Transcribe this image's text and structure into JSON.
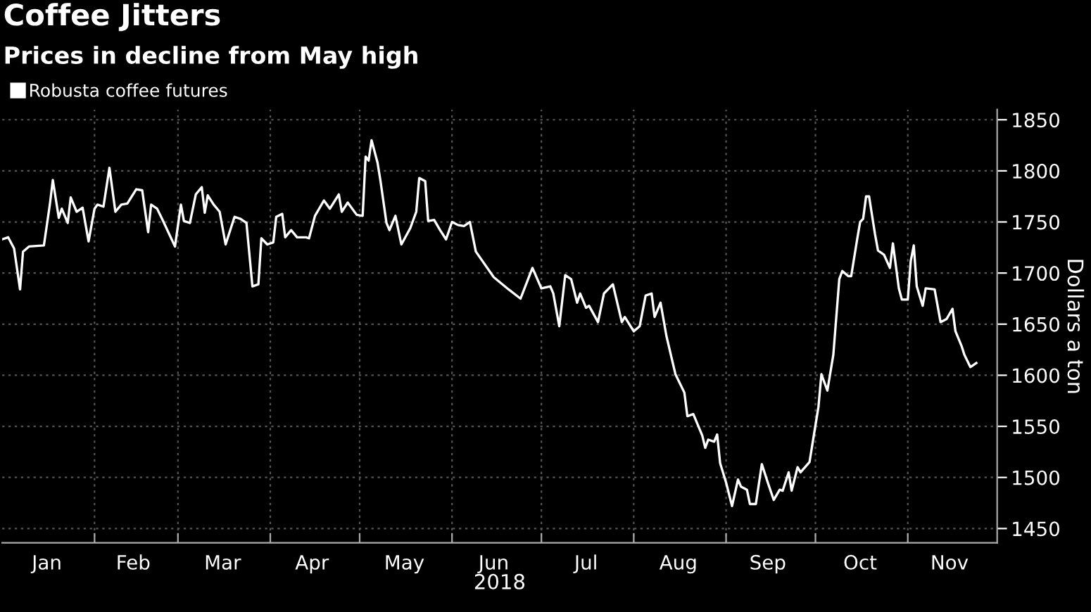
{
  "chart_data": {
    "type": "line",
    "title": "Coffee Jitters",
    "subtitle": "Prices in decline from May high",
    "xlabel": "2018",
    "ylabel": "Dollars a ton",
    "xlim": [
      "2018-01-01",
      "2018-12-01"
    ],
    "xticks": [
      {
        "value": "2018-01-16",
        "label": "Jan"
      },
      {
        "value": "2018-02-01",
        "label": null
      },
      {
        "value": "2018-02-14",
        "label": "Feb"
      },
      {
        "value": "2018-03-01",
        "label": null
      },
      {
        "value": "2018-03-16",
        "label": "Mar"
      },
      {
        "value": "2018-04-01",
        "label": null
      },
      {
        "value": "2018-04-15",
        "label": "Apr"
      },
      {
        "value": "2018-05-01",
        "label": null
      },
      {
        "value": "2018-05-16",
        "label": "May"
      },
      {
        "value": "2018-06-01",
        "label": null
      },
      {
        "value": "2018-06-15",
        "label": "Jun"
      },
      {
        "value": "2018-07-01",
        "label": null
      },
      {
        "value": "2018-07-16",
        "label": "Jul"
      },
      {
        "value": "2018-08-01",
        "label": null
      },
      {
        "value": "2018-08-16",
        "label": "Aug"
      },
      {
        "value": "2018-09-01",
        "label": null
      },
      {
        "value": "2018-09-15",
        "label": "Sep"
      },
      {
        "value": "2018-10-01",
        "label": null
      },
      {
        "value": "2018-10-16",
        "label": "Oct"
      },
      {
        "value": "2018-11-01",
        "label": null
      },
      {
        "value": "2018-11-15",
        "label": "Nov"
      }
    ],
    "ylim": [
      1436,
      1860
    ],
    "yticks": [
      1450,
      1500,
      1550,
      1600,
      1650,
      1700,
      1750,
      1800,
      1850
    ],
    "grid": true,
    "legend": "top left",
    "line_style": "solid",
    "series": [
      {
        "name": "Robusta coffee futures",
        "color": "#ffffff",
        "x": [
          "2018-01-01",
          "2018-01-03",
          "2018-01-05",
          "2018-01-07",
          "2018-01-08",
          "2018-01-10",
          "2018-01-15",
          "2018-01-17",
          "2018-01-18",
          "2018-01-20",
          "2018-01-21",
          "2018-01-23",
          "2018-01-24",
          "2018-01-26",
          "2018-01-28",
          "2018-01-30",
          "2018-02-01",
          "2018-02-02",
          "2018-02-04",
          "2018-02-06",
          "2018-02-08",
          "2018-02-10",
          "2018-02-12",
          "2018-02-15",
          "2018-02-17",
          "2018-02-19",
          "2018-02-20",
          "2018-02-22",
          "2018-02-24",
          "2018-02-28",
          "2018-03-02",
          "2018-03-03",
          "2018-03-05",
          "2018-03-07",
          "2018-03-09",
          "2018-03-10",
          "2018-03-11",
          "2018-03-13",
          "2018-03-15",
          "2018-03-17",
          "2018-03-20",
          "2018-03-22",
          "2018-03-24",
          "2018-03-26",
          "2018-03-28",
          "2018-03-29",
          "2018-03-31",
          "2018-04-02",
          "2018-04-03",
          "2018-04-05",
          "2018-04-06",
          "2018-04-08",
          "2018-04-10",
          "2018-04-13",
          "2018-04-14",
          "2018-04-16",
          "2018-04-19",
          "2018-04-21",
          "2018-04-24",
          "2018-04-25",
          "2018-04-27",
          "2018-04-30",
          "2018-05-02",
          "2018-05-03",
          "2018-05-04",
          "2018-05-05",
          "2018-05-07",
          "2018-05-08",
          "2018-05-10",
          "2018-05-11",
          "2018-05-13",
          "2018-05-15",
          "2018-05-18",
          "2018-05-20",
          "2018-05-21",
          "2018-05-23",
          "2018-05-24",
          "2018-05-26",
          "2018-05-28",
          "2018-05-30",
          "2018-06-01",
          "2018-06-03",
          "2018-06-05",
          "2018-06-07",
          "2018-06-09",
          "2018-06-15",
          "2018-06-20",
          "2018-06-24",
          "2018-06-28",
          "2018-07-01",
          "2018-07-04",
          "2018-07-05",
          "2018-07-07",
          "2018-07-09",
          "2018-07-11",
          "2018-07-13",
          "2018-07-14",
          "2018-07-16",
          "2018-07-17",
          "2018-07-20",
          "2018-07-22",
          "2018-07-25",
          "2018-07-28",
          "2018-07-29",
          "2018-08-01",
          "2018-08-03",
          "2018-08-05",
          "2018-08-07",
          "2018-08-08",
          "2018-08-10",
          "2018-08-12",
          "2018-08-15",
          "2018-08-18",
          "2018-08-19",
          "2018-08-21",
          "2018-08-24",
          "2018-08-25",
          "2018-08-26",
          "2018-08-28",
          "2018-08-29",
          "2018-08-30",
          "2018-09-01",
          "2018-09-03",
          "2018-09-05",
          "2018-09-06",
          "2018-09-08",
          "2018-09-09",
          "2018-09-11",
          "2018-09-13",
          "2018-09-15",
          "2018-09-17",
          "2018-09-19",
          "2018-09-20",
          "2018-09-22",
          "2018-09-23",
          "2018-09-25",
          "2018-09-26",
          "2018-09-29",
          "2018-10-01",
          "2018-10-02",
          "2018-10-03",
          "2018-10-05",
          "2018-10-07",
          "2018-10-09",
          "2018-10-10",
          "2018-10-12",
          "2018-10-13",
          "2018-10-15",
          "2018-10-16",
          "2018-10-17",
          "2018-10-18",
          "2018-10-19",
          "2018-10-21",
          "2018-10-22",
          "2018-10-24",
          "2018-10-26",
          "2018-10-27",
          "2018-10-29",
          "2018-10-30",
          "2018-11-01",
          "2018-11-02",
          "2018-11-03",
          "2018-11-04",
          "2018-11-06",
          "2018-11-07",
          "2018-11-10",
          "2018-11-12",
          "2018-11-14",
          "2018-11-16",
          "2018-11-17",
          "2018-11-19",
          "2018-11-20",
          "2018-11-22",
          "2018-11-24"
        ],
        "values": [
          1733,
          1735,
          1724,
          1684,
          1721,
          1726,
          1727,
          1767,
          1791,
          1754,
          1763,
          1749,
          1774,
          1760,
          1764,
          1731,
          1763,
          1767,
          1765,
          1803,
          1760,
          1767,
          1768,
          1782,
          1781,
          1740,
          1767,
          1763,
          1751,
          1726,
          1767,
          1751,
          1749,
          1777,
          1784,
          1759,
          1776,
          1767,
          1760,
          1728,
          1755,
          1753,
          1749,
          1687,
          1689,
          1734,
          1728,
          1730,
          1755,
          1758,
          1735,
          1742,
          1735,
          1735,
          1734,
          1756,
          1771,
          1763,
          1777,
          1760,
          1769,
          1757,
          1756,
          1814,
          1810,
          1830,
          1808,
          1790,
          1749,
          1742,
          1756,
          1728,
          1744,
          1760,
          1793,
          1790,
          1751,
          1752,
          1742,
          1733,
          1750,
          1747,
          1746,
          1750,
          1721,
          1696,
          1684,
          1675,
          1705,
          1685,
          1687,
          1680,
          1648,
          1698,
          1694,
          1671,
          1680,
          1666,
          1668,
          1652,
          1680,
          1689,
          1652,
          1657,
          1643,
          1648,
          1678,
          1680,
          1657,
          1671,
          1638,
          1601,
          1583,
          1560,
          1562,
          1541,
          1529,
          1537,
          1535,
          1542,
          1514,
          1495,
          1472,
          1498,
          1491,
          1488,
          1474,
          1474,
          1513,
          1495,
          1478,
          1488,
          1487,
          1505,
          1487,
          1510,
          1505,
          1515,
          1551,
          1569,
          1601,
          1585,
          1620,
          1694,
          1702,
          1697,
          1697,
          1733,
          1750,
          1753,
          1775,
          1775,
          1738,
          1722,
          1718,
          1705,
          1729,
          1685,
          1674,
          1674,
          1712,
          1727,
          1687,
          1668,
          1685,
          1684,
          1652,
          1655,
          1665,
          1643,
          1629,
          1620,
          1608,
          1612
        ]
      }
    ]
  }
}
